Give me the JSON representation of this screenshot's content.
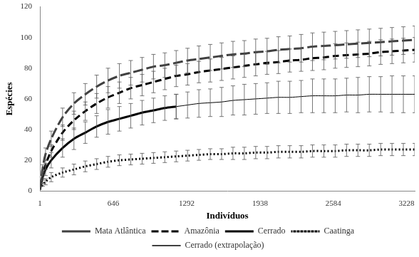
{
  "chart_data": {
    "type": "line",
    "x_label": "Indivíduos",
    "y_label": "Espécies",
    "x": [
      1,
      25,
      50,
      100,
      200,
      300,
      400,
      500,
      600,
      700,
      800,
      900,
      1000,
      1100,
      1200,
      1300,
      1400,
      1500,
      1600,
      1700,
      1800,
      1900,
      2000,
      2100,
      2200,
      2300,
      2400,
      2500,
      2600,
      2700,
      2800,
      2900,
      3000,
      3100,
      3200,
      3300
    ],
    "xlim": [
      1,
      3300
    ],
    "xticks": [
      1,
      646,
      1292,
      1938,
      2584,
      3228
    ],
    "ylim": [
      0,
      120
    ],
    "yticks": [
      0,
      20,
      40,
      60,
      80,
      100,
      120
    ],
    "grid": false,
    "legend": "bottom",
    "series": [
      {
        "name": "Mata Atlântica",
        "color": "#404040",
        "line_style": "long_dash",
        "values": [
          1,
          15,
          24,
          34,
          48,
          57,
          63,
          68,
          72,
          75,
          77,
          79,
          81,
          82,
          83.5,
          85,
          86,
          87,
          88,
          89,
          89.5,
          90.5,
          91,
          92,
          92.5,
          93,
          94,
          94.5,
          95,
          95.5,
          96,
          96.5,
          97,
          97.5,
          98,
          98.5
        ],
        "errors": [
          0,
          2,
          4,
          5,
          6,
          7,
          7,
          7.5,
          8,
          8,
          8,
          8,
          8,
          8,
          8,
          8,
          8.5,
          8.5,
          8.5,
          8.5,
          8.5,
          8.5,
          8.5,
          8.5,
          8.5,
          9,
          9,
          9,
          9,
          9,
          9,
          9,
          9,
          9,
          9,
          9
        ]
      },
      {
        "name": "Amazônia",
        "color": "#000000",
        "line_style": "dashed",
        "values": [
          1,
          10,
          17,
          26,
          38,
          46,
          52,
          57,
          61,
          64,
          67,
          69,
          71,
          73,
          75,
          76,
          77.5,
          78.5,
          79.5,
          80.5,
          81.5,
          82.5,
          83.5,
          84,
          85,
          85.5,
          86.5,
          87,
          88,
          88.5,
          89,
          89.5,
          90.5,
          91,
          91.5,
          92
        ],
        "errors": [
          0,
          2,
          3,
          4,
          5,
          6,
          6,
          6.5,
          7,
          7,
          7,
          7,
          7,
          7,
          7,
          7,
          7,
          7.5,
          7.5,
          7.5,
          7.5,
          7.5,
          7.5,
          7.5,
          7.5,
          7.5,
          8,
          8,
          8,
          8,
          8,
          8,
          8,
          8,
          8,
          8
        ]
      },
      {
        "name": "Cerrado",
        "color": "#000000",
        "line_style": "solid",
        "values": [
          1,
          9,
          14,
          20,
          28,
          34,
          38,
          42,
          45,
          47,
          49,
          51,
          52.5,
          54,
          55,
          null,
          null,
          null,
          null,
          null,
          null,
          null,
          null,
          null,
          null,
          null,
          null,
          null,
          null,
          null,
          null,
          null,
          null,
          null,
          null,
          null
        ],
        "errors": [
          0,
          2,
          4,
          5,
          6,
          7,
          7,
          7,
          8,
          8,
          8,
          8,
          8,
          8,
          8,
          null,
          null,
          null,
          null,
          null,
          null,
          null,
          null,
          null,
          null,
          null,
          null,
          null,
          null,
          null,
          null,
          null,
          null,
          null,
          null,
          null
        ]
      },
      {
        "name": "Caatinga",
        "color": "#000000",
        "line_style": "dotted",
        "values": [
          1,
          4,
          6,
          9,
          12,
          14,
          16,
          17.5,
          19,
          20,
          20.5,
          21,
          21.5,
          22,
          22.5,
          23,
          23.5,
          24,
          24,
          24.5,
          24.5,
          25,
          25,
          25.5,
          25.5,
          25.5,
          26,
          26,
          26,
          26.5,
          26.5,
          26.5,
          27,
          27,
          27,
          27
        ],
        "errors": [
          0,
          1,
          2,
          3,
          3,
          3.5,
          3.5,
          3.5,
          3.5,
          3.5,
          3.5,
          3.5,
          3.5,
          3.5,
          3.5,
          3.5,
          3.5,
          3.5,
          3.5,
          4,
          4,
          4,
          4,
          4,
          4,
          4,
          4,
          4,
          4,
          4,
          4,
          4,
          4,
          4,
          4,
          4
        ]
      },
      {
        "name": "Cerrado (extrapolação)",
        "color": "#000000",
        "line_style": "thin_solid",
        "values": [
          null,
          null,
          null,
          null,
          null,
          null,
          null,
          null,
          null,
          null,
          null,
          null,
          null,
          null,
          55,
          56,
          57,
          57.5,
          58,
          59,
          59.5,
          60,
          60.5,
          61,
          61,
          61.5,
          62,
          62,
          62,
          62.5,
          62.5,
          63,
          63,
          63,
          63,
          63
        ],
        "errors": [
          null,
          null,
          null,
          null,
          null,
          null,
          null,
          null,
          null,
          null,
          null,
          null,
          null,
          null,
          8,
          8.5,
          9,
          9,
          9.5,
          9.5,
          10,
          10,
          10,
          10.5,
          10.5,
          10.5,
          11,
          11,
          11,
          11,
          11.5,
          11.5,
          11.5,
          12,
          12,
          12
        ]
      }
    ]
  }
}
